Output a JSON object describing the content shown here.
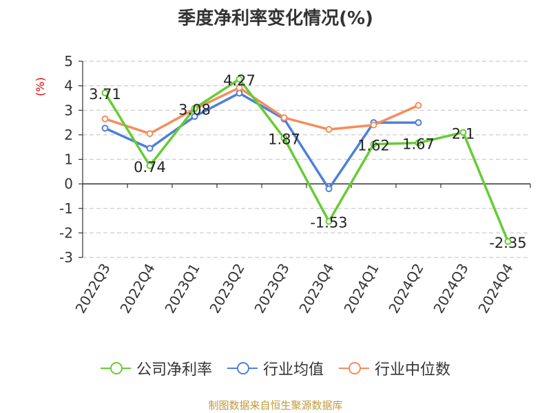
{
  "chart_data": {
    "type": "line",
    "title": "季度净利率变化情况(%)",
    "ylabel": "(%)",
    "xlabel": "",
    "categories": [
      "2022Q3",
      "2022Q4",
      "2023Q1",
      "2023Q2",
      "2023Q3",
      "2023Q4",
      "2024Q1",
      "2024Q2",
      "2024Q3",
      "2024Q4"
    ],
    "ylim": [
      -3,
      5
    ],
    "yticks": [
      "5",
      "4",
      "3",
      "2",
      "1",
      "0",
      "-1",
      "-2",
      "-3"
    ],
    "grid": "horizontal dashed",
    "legend_position": "bottom",
    "series": [
      {
        "name": "公司净利率",
        "color": "#66cc33",
        "values": [
          3.71,
          0.74,
          3.08,
          4.27,
          1.87,
          -1.53,
          1.62,
          1.67,
          2.1,
          -2.35
        ],
        "labels": [
          "3.71",
          "0.74",
          "3.08",
          "4.27",
          "1.87",
          "-1.53",
          "1.62",
          "1.67",
          "2.1",
          "-2.35"
        ]
      },
      {
        "name": "行业均值",
        "color": "#4d7fdc",
        "values": [
          2.27,
          1.45,
          2.75,
          3.7,
          2.65,
          -0.2,
          2.5,
          2.5,
          null,
          null
        ]
      },
      {
        "name": "行业中位数",
        "color": "#f58c5a",
        "values": [
          2.65,
          2.05,
          3.05,
          3.92,
          2.7,
          2.22,
          2.4,
          3.2,
          null,
          null
        ]
      }
    ]
  },
  "source_text": "制图数据来自恒生聚源数据库"
}
